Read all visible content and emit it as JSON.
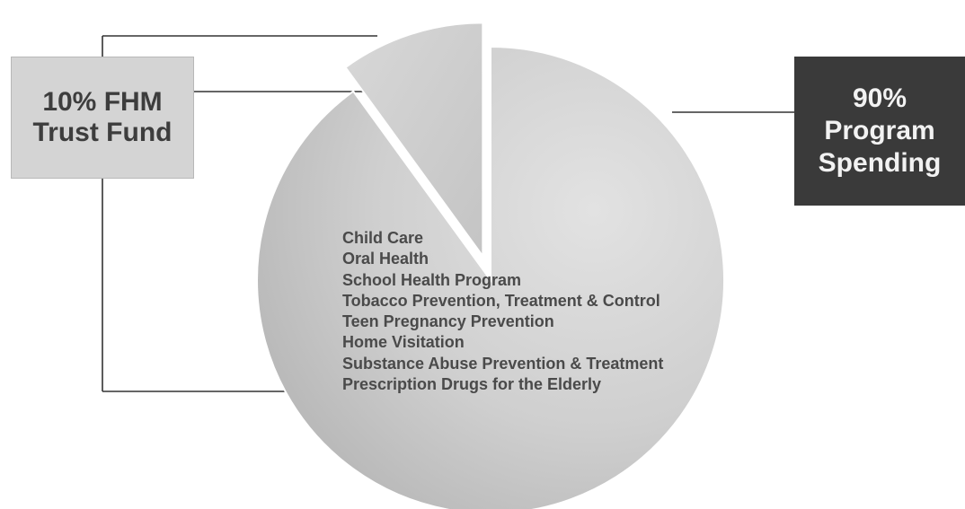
{
  "chart_data": {
    "type": "pie",
    "title": "",
    "slices": [
      {
        "label": "10% FHM Trust Fund",
        "value": 10,
        "color": "#d0d0d0",
        "exploded": true
      },
      {
        "label": "90% Program Spending",
        "value": 90,
        "color": "#c8c8c8",
        "exploded": false
      }
    ],
    "program_items": [
      "Child Care",
      "Oral Health",
      "School Health Program",
      "Tobacco Prevention, Treatment & Control",
      "Teen Pregnancy Prevention",
      "Home Visitation",
      "Substance Abuse Prevention & Treatment",
      "Prescription Drugs for the Elderly"
    ]
  },
  "labels": {
    "trust_fund": "10% FHM\nTrust Fund",
    "program_spending": "90%\nProgram\nSpending"
  },
  "colors": {
    "trust_box": "#d4d4d4",
    "program_box": "#3a3a3a",
    "connector": "#333333"
  }
}
